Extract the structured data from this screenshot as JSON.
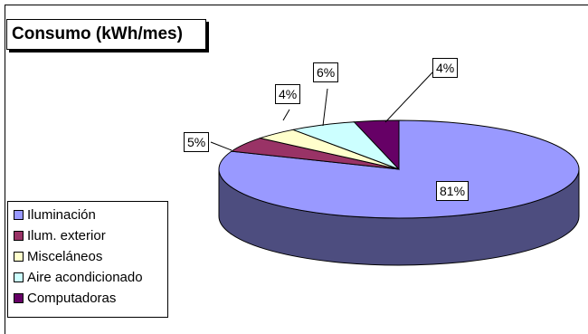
{
  "chart_data": {
    "type": "pie",
    "title": "Consumo (kWh/mes)",
    "three_d": true,
    "legend_position": "left",
    "categories": [
      "Iluminación",
      "Ilum. exterior",
      "Misceláneos",
      "Aire acondicionado",
      "Computadoras"
    ],
    "values": [
      81,
      5,
      4,
      6,
      4
    ],
    "labels": [
      "81%",
      "5%",
      "4%",
      "6%",
      "4%"
    ],
    "colors": {
      "top": [
        "#9999ff",
        "#993366",
        "#ffffcc",
        "#ccffff",
        "#660066"
      ],
      "side": [
        "#4d4d7f",
        "#4d1a33",
        "#80806a",
        "#6a8080",
        "#330033"
      ]
    }
  }
}
